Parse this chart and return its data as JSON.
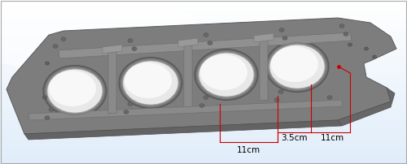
{
  "bg_gradient_top": "#e8f0f8",
  "bg_gradient_bottom": "#c8daea",
  "part_face_color": "#808080",
  "part_edge_color": "#606060",
  "part_bottom_color": "#686868",
  "part_right_color": "#707070",
  "hole_interior": "#ffffff",
  "hole_rim_color": "#909090",
  "rail_color": "#909090",
  "bolt_color": "#686868",
  "annotation_color": "#cc0000",
  "text_color": "#000000",
  "dim_label_11cm_1": "11cm",
  "dim_label_11cm_2": "11cm",
  "dim_label_35cm": "3.5cm",
  "font_size_dim": 7.5,
  "fig_width": 5.0,
  "fig_height": 2.02,
  "dpi": 100
}
